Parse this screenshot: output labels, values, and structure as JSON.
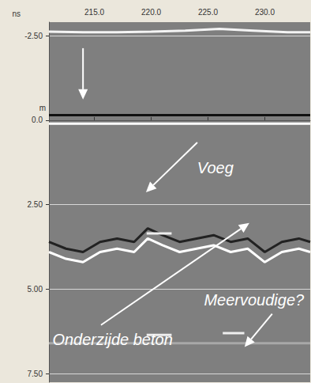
{
  "chart_data": {
    "type": "line",
    "xlabel": "m",
    "ylabel": "ns",
    "xlim": [
      211,
      234
    ],
    "xticks": [
      {
        "value": 215,
        "label": "215.0"
      },
      {
        "value": 220,
        "label": "220.0"
      },
      {
        "value": 225,
        "label": "225.0"
      },
      {
        "value": 230,
        "label": "230.0"
      }
    ],
    "ylim": [
      -2.9,
      7.75
    ],
    "yticks": [
      {
        "value": -2.5,
        "label": "-2.50"
      },
      {
        "value": 0,
        "label": "0.0"
      },
      {
        "value": 2.5,
        "label": "2.50"
      },
      {
        "value": 5,
        "label": "5.00"
      },
      {
        "value": 7.5,
        "label": "7.50"
      }
    ],
    "grid": true,
    "series": [
      {
        "color": "#f4f4f4",
        "x": [
          211,
          214,
          217,
          220,
          223,
          226,
          229,
          232,
          234
        ],
        "values": [
          -2.62,
          -2.6,
          -2.6,
          -2.62,
          -2.65,
          -2.7,
          -2.65,
          -2.6,
          -2.6
        ]
      },
      {
        "color": "#111111",
        "x": [
          211,
          234
        ],
        "values": [
          -0.15,
          -0.15
        ]
      },
      {
        "color": "#ffffff",
        "x": [
          211,
          234
        ],
        "values": [
          0.1,
          0.1
        ]
      },
      {
        "color": "#222222",
        "x": [
          211,
          212.5,
          214,
          215.5,
          217,
          218.5,
          219.7,
          221,
          222.5,
          224,
          225.5,
          227,
          228.5,
          230,
          231.5,
          233,
          234
        ],
        "values": [
          3.6,
          3.8,
          3.9,
          3.6,
          3.5,
          3.6,
          3.2,
          3.4,
          3.6,
          3.5,
          3.4,
          3.6,
          3.5,
          3.9,
          3.6,
          3.5,
          3.6
        ]
      },
      {
        "color": "#ffffff",
        "x": [
          211,
          212.5,
          214,
          215.5,
          217,
          218.5,
          219.7,
          221,
          222.5,
          224,
          225.5,
          227,
          228.5,
          230,
          231.5,
          233,
          234
        ],
        "values": [
          3.9,
          4.1,
          4.2,
          3.9,
          3.8,
          3.9,
          3.5,
          3.7,
          3.9,
          3.8,
          3.7,
          3.9,
          3.8,
          4.2,
          3.9,
          3.8,
          3.9
        ]
      },
      {
        "color": "#a8a8a8",
        "x": [
          211,
          234
        ],
        "values": [
          6.6,
          6.6
        ]
      },
      {
        "color": "#eeeeee",
        "x": [
          219.6,
          221.8,
          222,
          226.3,
          228.2
        ],
        "values": [
          6.35,
          6.35,
          null,
          6.3,
          6.3
        ]
      },
      {
        "color": "#eeeeee",
        "x": [
          219.6,
          221.8
        ],
        "values": [
          3.35,
          3.35
        ]
      }
    ],
    "annotations": [
      {
        "arrow": {
          "from": [
            214,
            -2.13
          ],
          "to": [
            214,
            -0.61
          ]
        }
      },
      {
        "text": "Voeg",
        "x": 225.65,
        "y": 1.41,
        "arrow": {
          "from": [
            224.06,
            0.66
          ],
          "to": [
            219.54,
            2.13
          ]
        }
      },
      {
        "text": "Meervoudige?",
        "x": 229.05,
        "y": 5.32,
        "arrow": {
          "from": [
            230.65,
            5.73
          ],
          "to": [
            228.22,
            6.71
          ]
        }
      },
      {
        "text": "Onderzijde beton",
        "x": 216.6,
        "y": 6.48,
        "arrow": {
          "from": [
            215.58,
            6.06
          ],
          "to": [
            228.64,
            3.04
          ]
        }
      }
    ]
  }
}
